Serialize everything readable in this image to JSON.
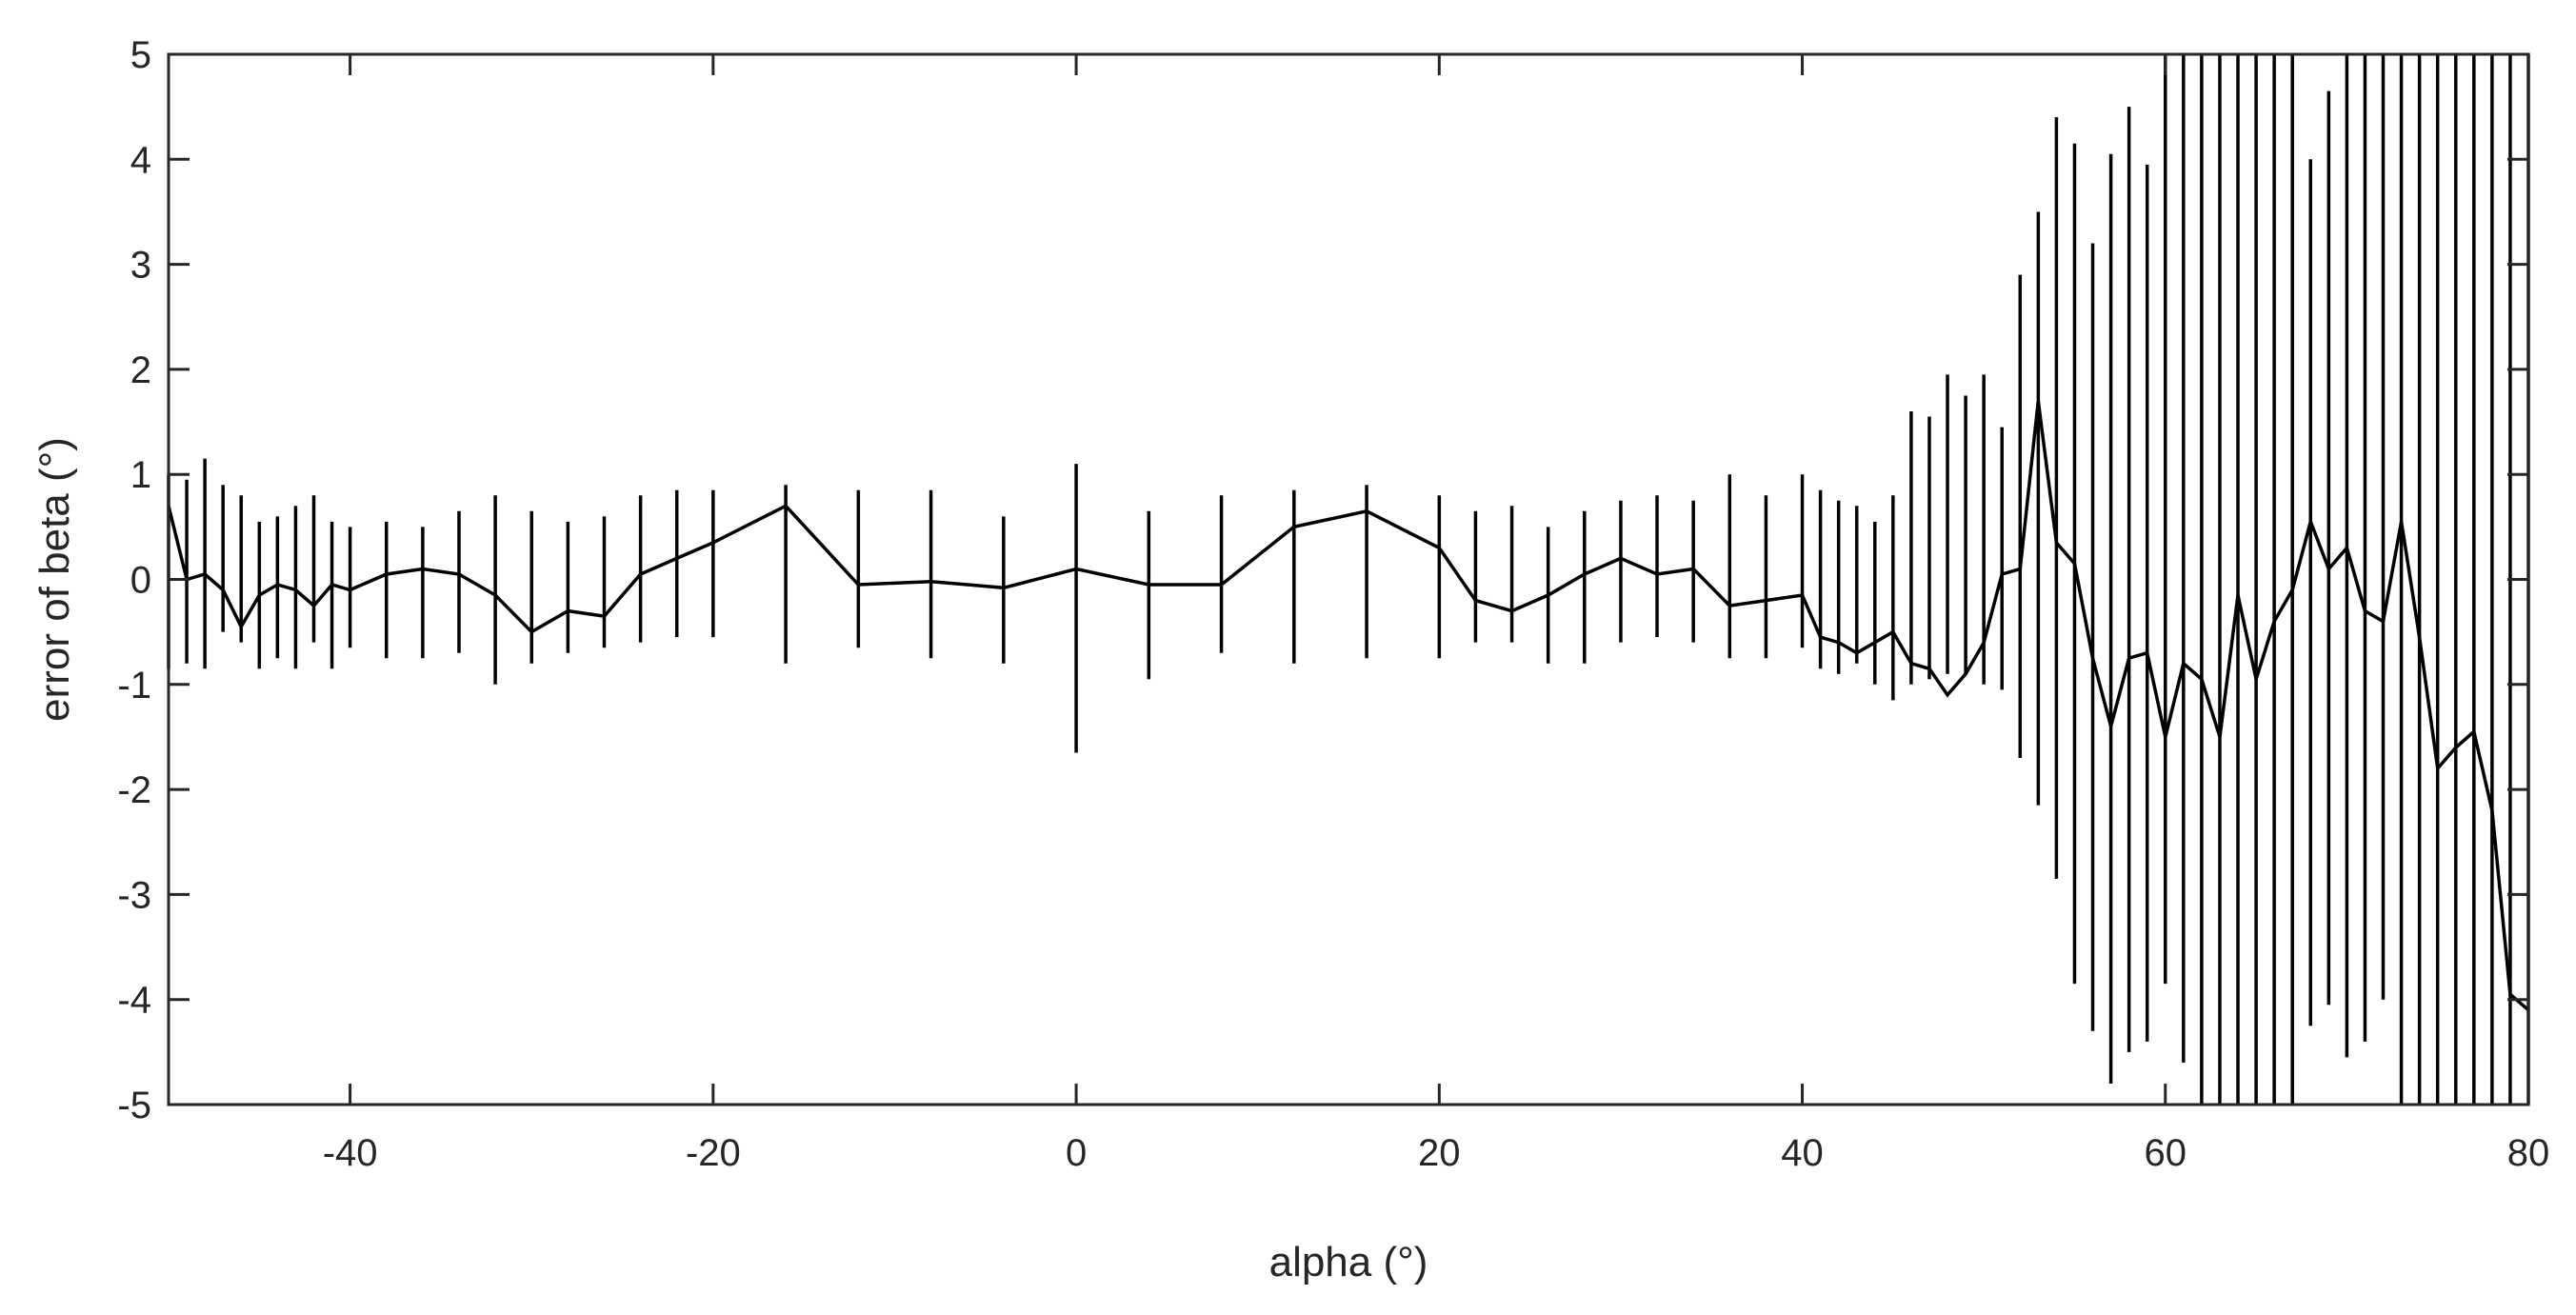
{
  "chart_data": {
    "type": "line",
    "title": "",
    "xlabel": "alpha (°)",
    "ylabel": "error of beta (°)",
    "xlim": [
      -50,
      80
    ],
    "ylim": [
      -5,
      5
    ],
    "x_ticks": [
      -40,
      -20,
      0,
      20,
      40,
      60,
      80
    ],
    "y_ticks": [
      5,
      4,
      3,
      2,
      1,
      0,
      -1,
      -2,
      -3,
      -4,
      -5
    ],
    "x_tick_labels": [
      "-40",
      "-20",
      "0",
      "20",
      "40",
      "60",
      "80"
    ],
    "y_tick_labels": [
      "5",
      "4",
      "3",
      "2",
      "1",
      "0",
      "-1",
      "-2",
      "-3",
      "-4",
      "-5"
    ],
    "grid": false,
    "colors": {
      "line": "#000000",
      "axes": "#262626",
      "background": "#ffffff"
    },
    "series": [
      {
        "style": "errorbar",
        "x": [
          -50,
          -49,
          -48,
          -47,
          -46,
          -45,
          -44,
          -43,
          -42,
          -41,
          -40,
          -38,
          -36,
          -34,
          -32,
          -30,
          -28,
          -26,
          -24,
          -22,
          -20,
          -16,
          -12,
          -8,
          -4,
          0,
          4,
          8,
          12,
          16,
          20,
          22,
          24,
          26,
          28,
          30,
          32,
          34,
          36,
          38,
          40,
          41,
          42,
          43,
          44,
          45,
          46,
          47,
          48,
          49,
          50,
          51,
          52,
          53,
          54,
          55,
          56,
          57,
          58,
          59,
          60,
          61,
          62,
          63,
          64,
          65,
          66,
          67,
          68,
          69,
          70,
          71,
          72,
          73,
          74,
          75,
          76,
          77,
          78,
          79,
          80
        ],
        "y": [
          0.7,
          0.0,
          0.05,
          -0.1,
          -0.45,
          -0.15,
          -0.05,
          -0.1,
          -0.25,
          -0.05,
          -0.1,
          0.05,
          0.1,
          0.05,
          -0.15,
          -0.5,
          -0.3,
          -0.35,
          0.05,
          0.2,
          0.35,
          0.7,
          -0.05,
          -0.02,
          -0.08,
          0.1,
          -0.05,
          -0.05,
          0.5,
          0.65,
          0.3,
          -0.2,
          -0.3,
          -0.15,
          0.05,
          0.2,
          0.05,
          0.1,
          -0.25,
          -0.2,
          -0.15,
          -0.55,
          -0.6,
          -0.7,
          -0.6,
          -0.5,
          -0.8,
          -0.85,
          -1.1,
          -0.9,
          -0.6,
          0.05,
          0.1,
          1.7,
          0.35,
          0.15,
          -0.75,
          -1.4,
          -0.75,
          -0.7,
          -1.5,
          -0.8,
          -0.95,
          -1.5,
          -0.15,
          -0.95,
          -0.4,
          -0.1,
          0.55,
          0.1,
          0.3,
          -0.3,
          -0.4,
          0.55,
          -0.55,
          -1.8,
          -1.6,
          -1.45,
          -2.2,
          -3.95,
          -4.1
        ],
        "lower": [
          -0.85,
          -0.8,
          -0.85,
          -0.5,
          -0.6,
          -0.85,
          -0.75,
          -0.85,
          -0.6,
          -0.85,
          -0.65,
          -0.75,
          -0.75,
          -0.7,
          -1.0,
          -0.8,
          -0.7,
          -0.65,
          -0.6,
          -0.55,
          -0.55,
          -0.8,
          -0.65,
          -0.75,
          -0.8,
          -1.65,
          -0.95,
          -0.7,
          -0.8,
          -0.75,
          -0.75,
          -0.6,
          -0.6,
          -0.8,
          -0.8,
          -0.6,
          -0.55,
          -0.6,
          -0.75,
          -0.75,
          -0.65,
          -0.85,
          -0.9,
          -0.8,
          -1.0,
          -1.15,
          -1.0,
          -0.95,
          -0.9,
          -0.9,
          -1.0,
          -1.05,
          -1.7,
          -2.15,
          -2.85,
          -3.85,
          -4.3,
          -4.8,
          -4.5,
          -4.4,
          -3.85,
          -4.6,
          -5,
          -5,
          -5,
          -5,
          -5,
          -5,
          -4.25,
          -4.05,
          -4.55,
          -4.4,
          -4.0,
          -5,
          -5,
          -5,
          -5,
          -5,
          -5,
          -5,
          -5
        ],
        "upper": [
          1.0,
          0.95,
          1.15,
          0.9,
          0.8,
          0.55,
          0.6,
          0.7,
          0.8,
          0.55,
          0.5,
          0.55,
          0.5,
          0.65,
          0.8,
          0.65,
          0.55,
          0.6,
          0.8,
          0.85,
          0.85,
          0.9,
          0.85,
          0.85,
          0.6,
          1.1,
          0.65,
          0.8,
          0.85,
          0.9,
          0.8,
          0.65,
          0.7,
          0.5,
          0.65,
          0.75,
          0.8,
          0.75,
          1.0,
          0.8,
          1.0,
          0.85,
          0.75,
          0.7,
          0.55,
          0.8,
          1.6,
          1.55,
          1.95,
          1.75,
          1.95,
          1.45,
          2.9,
          3.5,
          4.4,
          4.15,
          3.2,
          4.05,
          4.5,
          3.95,
          5,
          5,
          5,
          5,
          5,
          5,
          5,
          5,
          4.0,
          4.65,
          5,
          5,
          5,
          5,
          5,
          5,
          5,
          5,
          5,
          5,
          5
        ]
      }
    ]
  }
}
